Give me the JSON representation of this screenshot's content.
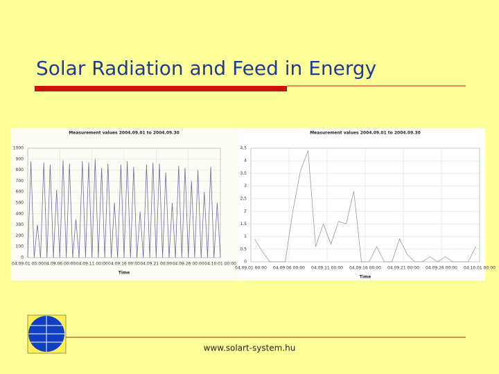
{
  "slide": {
    "title": "Solar Radiation and Feed in Energy",
    "footer": "www.solart-system.hu"
  },
  "chart_data": [
    {
      "type": "line",
      "title": "Measurement values 2004.09.01 to 2004.09.30",
      "x_label": "Time",
      "x": [
        "04.09.01 00:00",
        "04.09.01 12:00",
        "04.09.02 00:00",
        "04.09.02 12:00",
        "04.09.03 00:00",
        "04.09.03 12:00",
        "04.09.04 00:00",
        "04.09.04 12:00",
        "04.09.05 00:00",
        "04.09.05 12:00",
        "04.09.06 00:00",
        "04.09.06 12:00",
        "04.09.07 00:00",
        "04.09.07 12:00",
        "04.09.08 00:00",
        "04.09.08 12:00",
        "04.09.09 00:00",
        "04.09.09 12:00",
        "04.09.10 00:00",
        "04.09.10 12:00",
        "04.09.11 00:00",
        "04.09.11 12:00",
        "04.09.12 00:00",
        "04.09.12 12:00",
        "04.09.13 00:00",
        "04.09.13 12:00",
        "04.09.14 00:00",
        "04.09.14 12:00",
        "04.09.15 00:00",
        "04.09.15 12:00",
        "04.09.16 00:00",
        "04.09.16 12:00",
        "04.09.17 00:00",
        "04.09.17 12:00",
        "04.09.18 00:00",
        "04.09.18 12:00",
        "04.09.19 00:00",
        "04.09.19 12:00",
        "04.09.20 00:00",
        "04.09.20 12:00",
        "04.09.21 00:00",
        "04.09.21 12:00",
        "04.09.22 00:00",
        "04.09.22 12:00",
        "04.09.23 00:00",
        "04.09.23 12:00",
        "04.09.24 00:00",
        "04.09.24 12:00",
        "04.09.25 00:00",
        "04.09.25 12:00",
        "04.09.26 00:00",
        "04.09.26 12:00",
        "04.09.27 00:00",
        "04.09.27 12:00",
        "04.09.28 00:00",
        "04.09.28 12:00",
        "04.09.29 00:00",
        "04.09.29 12:00",
        "04.09.30 00:00",
        "04.09.30 12:00",
        "04.10.01 00:00"
      ],
      "series": [
        {
          "color": "#6a6aa8",
          "values": [
            0,
            880,
            0,
            300,
            0,
            870,
            0,
            850,
            0,
            620,
            0,
            890,
            0,
            860,
            0,
            350,
            0,
            880,
            0,
            870,
            0,
            900,
            0,
            820,
            0,
            860,
            0,
            500,
            0,
            850,
            0,
            880,
            0,
            830,
            0,
            420,
            0,
            850,
            0,
            870,
            0,
            860,
            0,
            780,
            0,
            500,
            0,
            840,
            0,
            820,
            0,
            700,
            0,
            800,
            0,
            600,
            0,
            830,
            0,
            500,
            0
          ]
        }
      ],
      "xlim": [
        "04.09.01 00:00",
        "04.10.01 00:00"
      ],
      "xticks": [
        "04.09.01 00:00",
        "04.09.06 00:00",
        "04.09.11 00:00",
        "04.09.16 00:00",
        "04.09.21 00:00",
        "04.09.26 00:00",
        "04.10.01 00:00"
      ],
      "ylim": [
        0,
        1000
      ],
      "yticks": [
        0,
        100,
        200,
        300,
        400,
        500,
        600,
        700,
        800,
        900,
        1000
      ],
      "grid": true
    },
    {
      "type": "line",
      "title": "Measurement values 2004.09.01 to 2004.09.30",
      "x_label": "Time",
      "x": [
        "04.09.01 12:00",
        "04.09.02 12:00",
        "04.09.03 12:00",
        "04.09.04 12:00",
        "04.09.05 12:00",
        "04.09.06 12:00",
        "04.09.07 12:00",
        "04.09.08 12:00",
        "04.09.09 12:00",
        "04.09.10 12:00",
        "04.09.11 12:00",
        "04.09.12 12:00",
        "04.09.13 12:00",
        "04.09.14 12:00",
        "04.09.15 12:00",
        "04.09.16 12:00",
        "04.09.17 12:00",
        "04.09.18 12:00",
        "04.09.19 12:00",
        "04.09.20 12:00",
        "04.09.21 12:00",
        "04.09.22 12:00",
        "04.09.23 12:00",
        "04.09.24 12:00",
        "04.09.25 12:00",
        "04.09.26 12:00",
        "04.09.27 12:00",
        "04.09.28 12:00",
        "04.09.29 12:00",
        "04.09.30 12:00"
      ],
      "series": [
        {
          "color": "#999999",
          "values": [
            0.9,
            0.4,
            0,
            0,
            0,
            2,
            3.6,
            4.4,
            0.6,
            1.5,
            0.7,
            1.6,
            1.5,
            2.8,
            0,
            0,
            0.6,
            0,
            0,
            0.9,
            0.3,
            0,
            0,
            0.2,
            0,
            0.2,
            0,
            0,
            0,
            0.6
          ]
        }
      ],
      "xlim": [
        "04.09.01 00:00",
        "04.10.01 00:00"
      ],
      "xticks": [
        "04.09.01 00:00",
        "04.09.06 00:00",
        "04.09.11 00:00",
        "04.09.16 00:00",
        "04.09.21 00:00",
        "04.09.26 00:00",
        "04.10.01 00:00"
      ],
      "ylim": [
        0,
        4.5
      ],
      "yticks": [
        0,
        {
          "value": 0.5,
          "label": "0,5"
        },
        1,
        {
          "value": 1.5,
          "label": "1,5"
        },
        2,
        {
          "value": 2.5,
          "label": "2,5"
        },
        3,
        {
          "value": 3.5,
          "label": "3,5"
        },
        4,
        {
          "value": 4.5,
          "label": "4,5"
        }
      ],
      "grid": true
    }
  ]
}
